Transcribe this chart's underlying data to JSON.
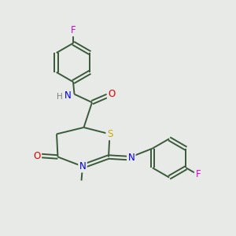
{
  "bg_color": "#e8eae8",
  "bond_color": "#3a5a3a",
  "bond_width": 1.4,
  "atom_colors": {
    "F": "#e000e0",
    "N": "#0000dd",
    "O": "#dd0000",
    "S": "#ccaa00",
    "C": "#3a5a3a",
    "H": "#808080"
  },
  "font_size": 8.5,
  "figsize": [
    3.0,
    3.0
  ],
  "dpi": 100,
  "xlim": [
    0,
    10
  ],
  "ylim": [
    0,
    10
  ]
}
